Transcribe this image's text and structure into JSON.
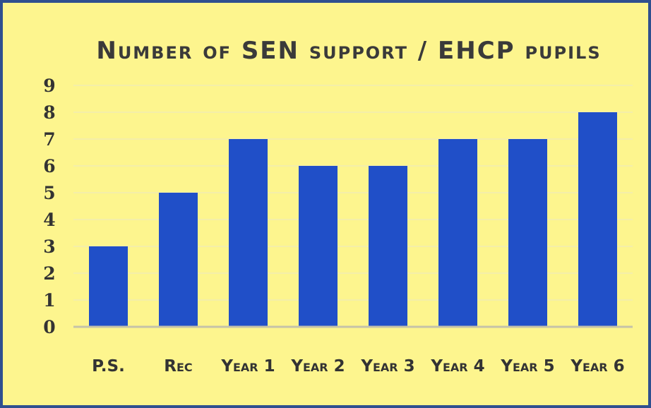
{
  "chart_data": {
    "type": "bar",
    "title": "Number of SEN support / EHCP pupils",
    "categories": [
      "P.S.",
      "Rec",
      "Year 1",
      "Year 2",
      "Year 3",
      "Year 4",
      "Year 5",
      "Year 6"
    ],
    "series": [
      {
        "values": [
          3,
          5,
          7,
          6,
          6,
          7,
          7,
          8
        ]
      }
    ],
    "ylim": [
      0,
      9
    ],
    "yticks": [
      0,
      1,
      2,
      3,
      4,
      5,
      6,
      7,
      8,
      9
    ],
    "grid": true,
    "legend": "none",
    "colors": {
      "bar": "#204fc8",
      "background": "#fdf58e",
      "border": "#2f4f8f",
      "gridline": "#f4eea9",
      "axis": "#c5c2a8"
    }
  }
}
